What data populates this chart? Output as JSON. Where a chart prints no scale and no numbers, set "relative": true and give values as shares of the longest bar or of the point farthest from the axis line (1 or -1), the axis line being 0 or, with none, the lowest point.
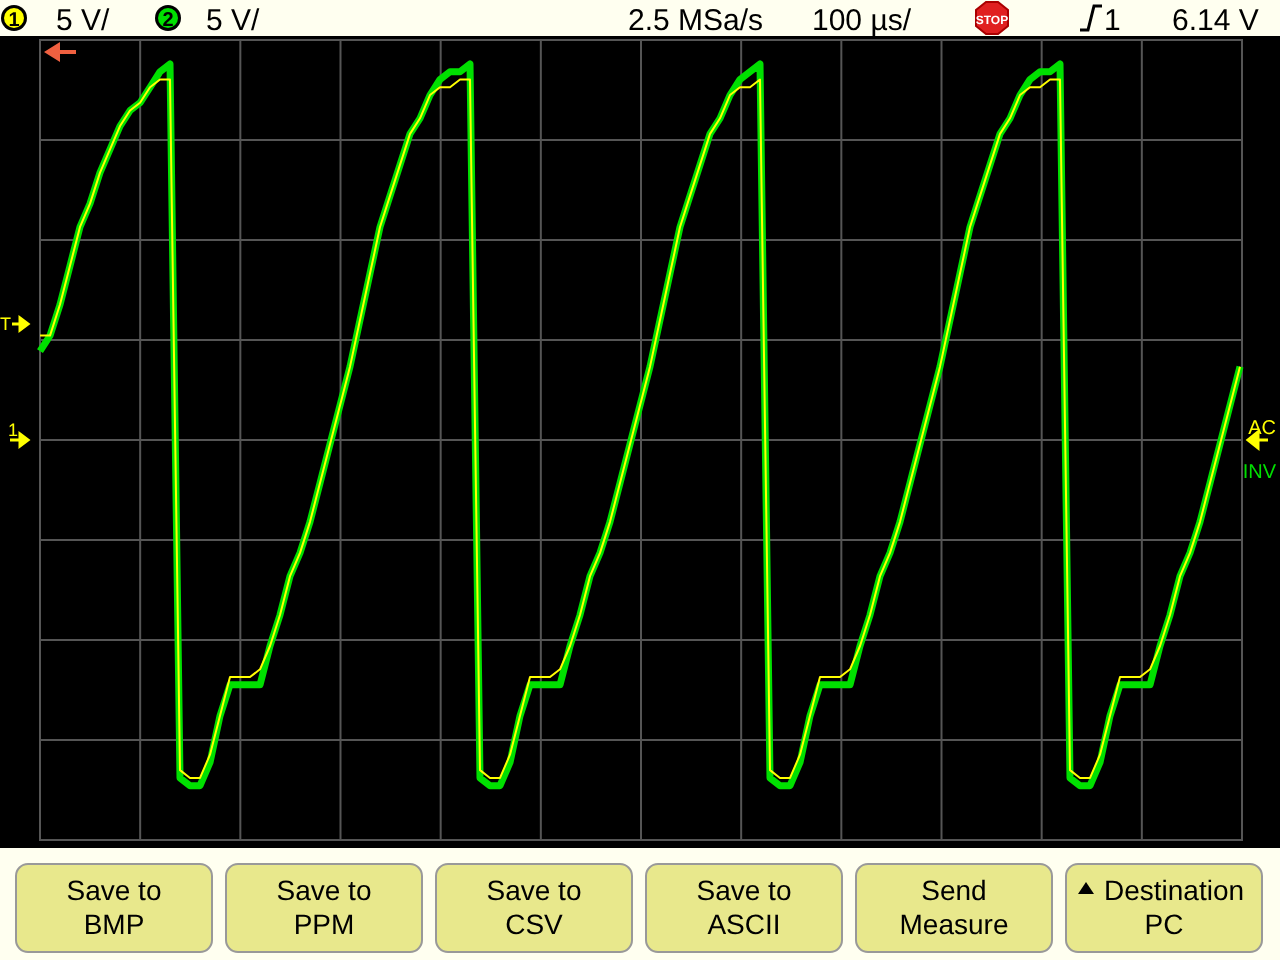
{
  "chart_data": {
    "type": "line",
    "relative": true,
    "grid": true,
    "marker": "none",
    "line_style": "solid",
    "categories": [
      null,
      null,
      null,
      null,
      null,
      null,
      null,
      null,
      null,
      null,
      null,
      null,
      null,
      null,
      null,
      null,
      null,
      null,
      null,
      null,
      null,
      null,
      null,
      null,
      null,
      null,
      null,
      null,
      null,
      null,
      null,
      null,
      null,
      null,
      null,
      null,
      null,
      null,
      null,
      null,
      null,
      null,
      null,
      null,
      null,
      null,
      null,
      null,
      null,
      null,
      null,
      null,
      null,
      null,
      null,
      null,
      null,
      null,
      null,
      null,
      null,
      null,
      null,
      null,
      null,
      null,
      null,
      null,
      null,
      null,
      null,
      null,
      null,
      null,
      null,
      null,
      null,
      null,
      null,
      null,
      null,
      null,
      null,
      null,
      null,
      null,
      null,
      null,
      null,
      null,
      null,
      null,
      null,
      null,
      null,
      null,
      null,
      null,
      null,
      null,
      null,
      null,
      null,
      null,
      null,
      null,
      null,
      null,
      null,
      null,
      null,
      null,
      null,
      null,
      null,
      null,
      null,
      null,
      null,
      null,
      null
    ],
    "series": [
      {
        "color": "#00e000",
        "values": [
          0.63,
          0.65,
          0.69,
          0.74,
          0.79,
          0.82,
          0.86,
          0.89,
          0.92,
          0.94,
          0.95,
          0.97,
          0.99,
          1.0,
          0.08,
          0.07,
          0.07,
          0.1,
          0.16,
          0.2,
          0.2,
          0.2,
          0.2,
          0.25,
          0.29,
          0.34,
          0.37,
          0.41,
          0.46,
          0.51,
          0.56,
          0.61,
          0.67,
          0.73,
          0.79,
          0.83,
          0.87,
          0.91,
          0.93,
          0.96,
          0.98,
          0.99,
          0.99,
          1.0,
          0.08,
          0.07,
          0.07,
          0.1,
          0.16,
          0.2,
          0.2,
          0.2,
          0.2,
          0.25,
          0.29,
          0.34,
          0.37,
          0.41,
          0.46,
          0.51,
          0.56,
          0.61,
          0.67,
          0.73,
          0.79,
          0.83,
          0.87,
          0.91,
          0.93,
          0.96,
          0.98,
          0.99,
          1.0,
          0.08,
          0.07,
          0.07,
          0.1,
          0.16,
          0.2,
          0.2,
          0.2,
          0.2,
          0.25,
          0.29,
          0.34,
          0.37,
          0.41,
          0.46,
          0.51,
          0.56,
          0.61,
          0.67,
          0.73,
          0.79,
          0.83,
          0.87,
          0.91,
          0.93,
          0.96,
          0.98,
          0.99,
          0.99,
          1.0,
          0.08,
          0.07,
          0.07,
          0.1,
          0.16,
          0.2,
          0.2,
          0.2,
          0.2,
          0.25,
          0.29,
          0.34,
          0.37,
          0.41,
          0.46,
          0.51,
          0.56,
          0.61
        ]
      },
      {
        "color": "#ffff00",
        "values": [
          0.65,
          0.65,
          0.69,
          0.74,
          0.79,
          0.82,
          0.86,
          0.89,
          0.92,
          0.94,
          0.95,
          0.97,
          0.98,
          0.98,
          0.09,
          0.08,
          0.08,
          0.11,
          0.16,
          0.21,
          0.21,
          0.21,
          0.22,
          0.25,
          0.29,
          0.34,
          0.37,
          0.41,
          0.46,
          0.51,
          0.56,
          0.61,
          0.67,
          0.73,
          0.79,
          0.83,
          0.87,
          0.91,
          0.93,
          0.96,
          0.97,
          0.97,
          0.98,
          0.98,
          0.09,
          0.08,
          0.08,
          0.11,
          0.16,
          0.21,
          0.21,
          0.21,
          0.22,
          0.25,
          0.29,
          0.34,
          0.37,
          0.41,
          0.46,
          0.51,
          0.56,
          0.61,
          0.67,
          0.73,
          0.79,
          0.83,
          0.87,
          0.91,
          0.93,
          0.96,
          0.97,
          0.97,
          0.98,
          0.09,
          0.08,
          0.08,
          0.11,
          0.16,
          0.21,
          0.21,
          0.21,
          0.22,
          0.25,
          0.29,
          0.34,
          0.37,
          0.41,
          0.46,
          0.51,
          0.56,
          0.61,
          0.67,
          0.73,
          0.79,
          0.83,
          0.87,
          0.91,
          0.93,
          0.96,
          0.97,
          0.97,
          0.98,
          0.98,
          0.09,
          0.08,
          0.08,
          0.11,
          0.16,
          0.21,
          0.21,
          0.21,
          0.22,
          0.25,
          0.29,
          0.34,
          0.37,
          0.41,
          0.46,
          0.51,
          0.56,
          0.61
        ]
      }
    ],
    "annotations": [
      "1",
      "5 V/",
      "2",
      "5 V/",
      "2.5 MSa/s",
      "100 µs/",
      "STOP",
      "1",
      "6.14 V",
      "T",
      "1",
      "AC",
      "INV",
      "Save to BMP",
      "Save to PPM",
      "Save to CSV",
      "Save to ASCII",
      "Send Measure",
      "Destination PC"
    ]
  }
}
